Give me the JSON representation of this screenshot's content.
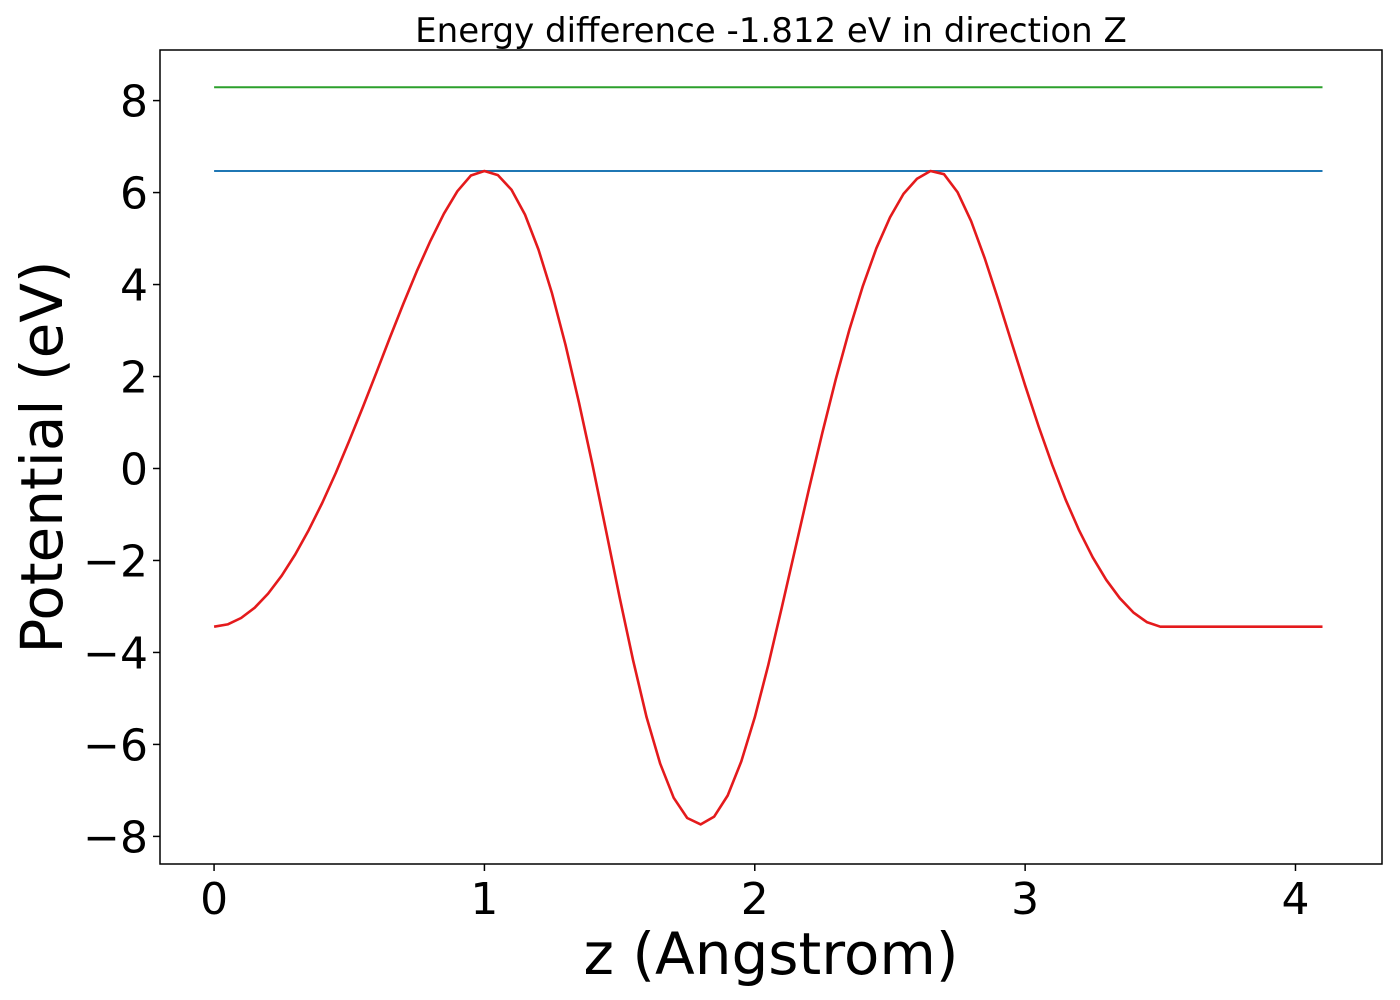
{
  "chart_data": {
    "type": "line",
    "title": "Energy difference -1.812 eV in direction Z",
    "xlabel": "z (Angstrom)",
    "ylabel": "Potential (eV)",
    "xlim": [
      -0.2,
      4.32
    ],
    "ylim": [
      -8.6,
      9.1
    ],
    "xticks": [
      0,
      1,
      2,
      3,
      4
    ],
    "xtick_labels": [
      "0",
      "1",
      "2",
      "3",
      "4"
    ],
    "yticks": [
      -8,
      -6,
      -4,
      -2,
      0,
      2,
      4,
      6,
      8
    ],
    "ytick_labels": [
      "−8",
      "−6",
      "−4",
      "−2",
      "0",
      "2",
      "4",
      "6",
      "8"
    ],
    "grid": false,
    "series": [
      {
        "color": "#2ca02c",
        "x": [
          0,
          4.1
        ],
        "y": [
          8.29,
          8.29
        ]
      },
      {
        "color": "#1f77b4",
        "x": [
          0,
          4.1
        ],
        "y": [
          6.47,
          6.47
        ]
      },
      {
        "color": "#e41a1c",
        "x": [
          0.0,
          0.05,
          0.1,
          0.15,
          0.2,
          0.25,
          0.3,
          0.35,
          0.4,
          0.45,
          0.5,
          0.55,
          0.6,
          0.65,
          0.7,
          0.75,
          0.8,
          0.85,
          0.9,
          0.95,
          1.0,
          1.05,
          1.1,
          1.15,
          1.2,
          1.25,
          1.3,
          1.35,
          1.4,
          1.45,
          1.5,
          1.55,
          1.6,
          1.65,
          1.7,
          1.75,
          1.8,
          1.85,
          1.9,
          1.95,
          2.0,
          2.05,
          2.1,
          2.15,
          2.2,
          2.25,
          2.3,
          2.35,
          2.4,
          2.45,
          2.5,
          2.55,
          2.6,
          2.65,
          2.7,
          2.75,
          2.8,
          2.85,
          2.9,
          2.95,
          3.0,
          3.05,
          3.1,
          3.15,
          3.2,
          3.25,
          3.3,
          3.35,
          3.4,
          3.45,
          3.5,
          3.55,
          3.6,
          3.65,
          3.7,
          3.75,
          3.8,
          3.85,
          3.9,
          3.95,
          4.0,
          4.05,
          4.1
        ],
        "y": [
          -3.44,
          -3.39,
          -3.25,
          -3.03,
          -2.72,
          -2.33,
          -1.87,
          -1.34,
          -0.75,
          -0.1,
          0.6,
          1.33,
          2.08,
          2.84,
          3.58,
          4.29,
          4.95,
          5.54,
          6.03,
          6.37,
          6.47,
          6.38,
          6.06,
          5.52,
          4.76,
          3.81,
          2.69,
          1.43,
          0.07,
          -1.36,
          -2.8,
          -4.17,
          -5.41,
          -6.42,
          -7.16,
          -7.6,
          -7.74,
          -7.57,
          -7.11,
          -6.37,
          -5.41,
          -4.27,
          -3.02,
          -1.74,
          -0.46,
          0.78,
          1.95,
          3.02,
          3.97,
          4.79,
          5.46,
          5.97,
          6.3,
          6.47,
          6.4,
          6.01,
          5.38,
          4.58,
          3.68,
          2.74,
          1.81,
          0.91,
          0.08,
          -0.68,
          -1.35,
          -1.93,
          -2.42,
          -2.82,
          -3.13,
          -3.34,
          -3.44,
          -3.44,
          -3.44,
          -3.44,
          -3.44,
          -3.44,
          -3.44,
          -3.44,
          -3.44,
          -3.44,
          -3.44,
          -3.44,
          -3.44
        ]
      }
    ]
  }
}
